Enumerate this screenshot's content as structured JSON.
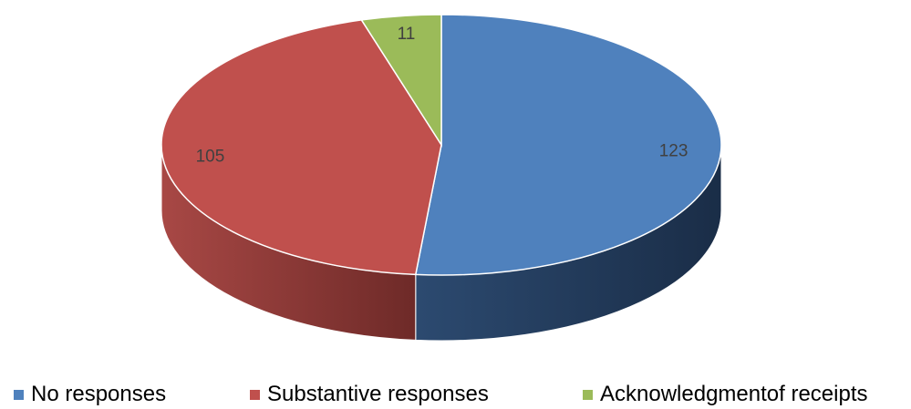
{
  "chart_data": {
    "type": "pie",
    "style": "3d",
    "categories": [
      "No responses",
      "Substantive responses",
      "Acknowledgmentof receipts"
    ],
    "values": [
      123,
      105,
      11
    ],
    "colors": [
      "#4f81bd",
      "#c0504d",
      "#9bbb59"
    ],
    "data_labels": [
      "123",
      "105",
      "11"
    ],
    "legend_position": "bottom"
  },
  "legend": {
    "items": [
      {
        "label": "No responses",
        "color": "#4f81bd"
      },
      {
        "label": "Substantive responses",
        "color": "#c0504d"
      },
      {
        "label": "Acknowledgmentof receipts",
        "color": "#9bbb59"
      }
    ]
  }
}
